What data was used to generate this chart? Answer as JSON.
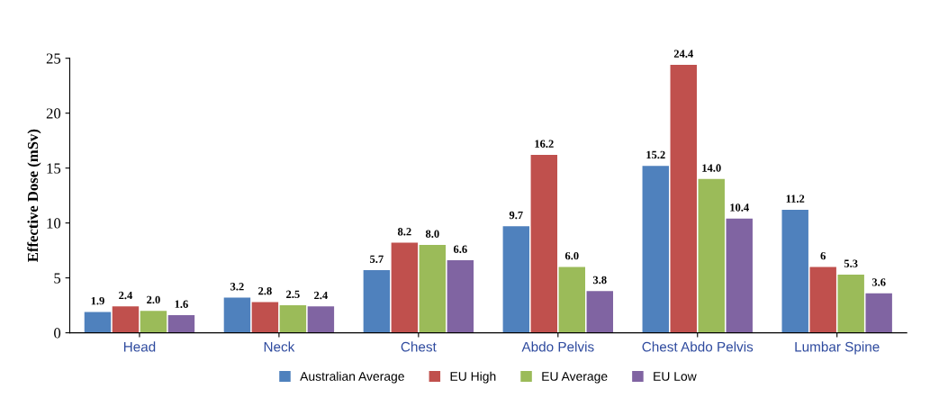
{
  "chart_data": {
    "type": "bar",
    "ylabel": "Effective Dose (mSv)",
    "categories": [
      "Head",
      "Neck",
      "Chest",
      "Abdo Pelvis",
      "Chest Abdo Pelvis",
      "Lumbar Spine"
    ],
    "series": [
      {
        "name": "Australian Average",
        "color": "#4f81bd",
        "values": [
          1.9,
          3.2,
          5.7,
          9.7,
          15.2,
          11.2
        ],
        "value_labels": [
          "1.9",
          "3.2",
          "5.7",
          "9.7",
          "15.2",
          "11.2"
        ]
      },
      {
        "name": "EU High",
        "color": "#c0504d",
        "values": [
          2.4,
          2.8,
          8.2,
          16.2,
          24.4,
          6
        ],
        "value_labels": [
          "2.4",
          "2.8",
          "8.2",
          "16.2",
          "24.4",
          "6"
        ]
      },
      {
        "name": "EU Average",
        "color": "#9bbb59",
        "values": [
          2.0,
          2.5,
          8.0,
          6.0,
          14.0,
          5.3
        ],
        "value_labels": [
          "2.0",
          "2.5",
          "8.0",
          "6.0",
          "14.0",
          "5.3"
        ]
      },
      {
        "name": "EU Low",
        "color": "#8064a2",
        "values": [
          1.6,
          2.4,
          6.6,
          3.8,
          10.4,
          3.6
        ],
        "value_labels": [
          "1.6",
          "2.4",
          "6.6",
          "3.8",
          "10.4",
          "3.6"
        ]
      }
    ],
    "ylim": [
      0,
      25
    ],
    "yticks": [
      0,
      5,
      10,
      15,
      20,
      25
    ],
    "grid": false,
    "legend": "bottom"
  }
}
